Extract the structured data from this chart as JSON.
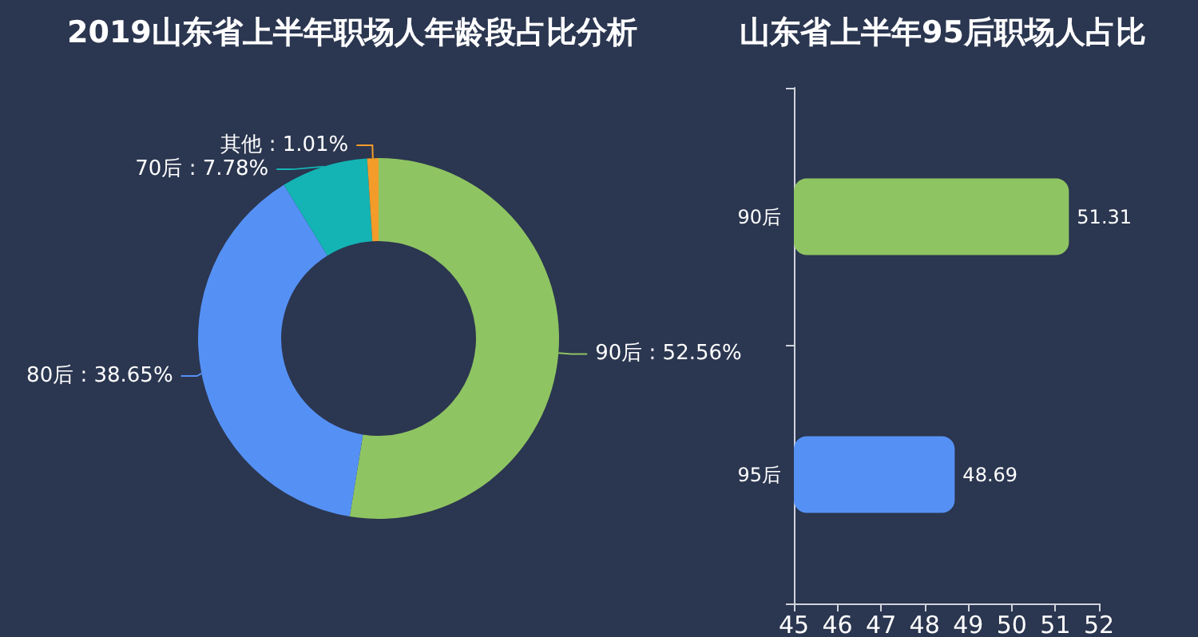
{
  "chart_data": [
    {
      "type": "donut",
      "title": "2019山东省上半年职场人年龄段占比分析",
      "categories": [
        "90后",
        "80后",
        "70后",
        "其他"
      ],
      "values": [
        52.56,
        38.65,
        7.78,
        1.01
      ],
      "value_labels": [
        "52.56%",
        "38.65%",
        "7.78%",
        "1.01%"
      ],
      "colors": [
        "#8fc462",
        "#5591f5",
        "#14b4b4",
        "#f39c2a"
      ],
      "legend": false
    },
    {
      "type": "bar",
      "orientation": "horizontal",
      "title": "山东省上半年95后职场人占比",
      "categories": [
        "90后",
        "95后"
      ],
      "values": [
        51.31,
        48.69
      ],
      "colors": [
        "#8fc462",
        "#5591f5"
      ],
      "xlim": [
        45,
        52
      ],
      "xticks": [
        45,
        46,
        47,
        48,
        49,
        50,
        51,
        52
      ],
      "data_labels": true,
      "grid": false,
      "legend": false
    }
  ]
}
